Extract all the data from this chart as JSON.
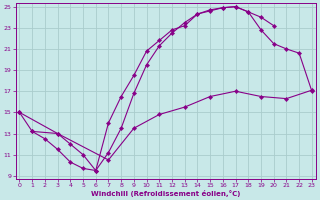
{
  "xlabel": "Windchill (Refroidissement éolien,°C)",
  "bg_color": "#c8e8e8",
  "line_color": "#880088",
  "grid_color": "#aacccc",
  "xlim": [
    0,
    23
  ],
  "ylim": [
    9,
    25
  ],
  "xticks": [
    0,
    1,
    2,
    3,
    4,
    5,
    6,
    7,
    8,
    9,
    10,
    11,
    12,
    13,
    14,
    15,
    16,
    17,
    18,
    19,
    20,
    21,
    22,
    23
  ],
  "yticks": [
    9,
    11,
    13,
    15,
    17,
    19,
    21,
    23,
    25
  ],
  "line1_x": [
    0,
    1,
    2,
    3,
    4,
    5,
    6,
    7,
    8,
    9,
    10,
    11,
    12,
    13,
    14,
    15,
    16,
    17,
    18,
    19,
    20,
    21,
    22,
    23
  ],
  "line1_y": [
    15.0,
    13.2,
    12.5,
    11.5,
    10.3,
    9.7,
    9.5,
    11.2,
    13.5,
    16.8,
    19.5,
    21.3,
    22.5,
    23.5,
    24.3,
    24.7,
    24.9,
    25.0,
    24.5,
    22.8,
    21.5,
    21.0,
    20.6,
    17.0
  ],
  "line2_x": [
    0,
    3,
    4,
    5,
    6,
    7,
    8,
    9,
    10,
    11,
    12,
    13,
    14,
    15,
    16,
    17,
    18,
    19,
    20
  ],
  "line2_y": [
    15.0,
    13.0,
    12.0,
    11.0,
    9.5,
    14.0,
    16.5,
    18.5,
    20.8,
    21.8,
    22.8,
    23.2,
    24.3,
    24.6,
    24.9,
    25.0,
    24.5,
    24.0,
    23.2
  ],
  "line3_x": [
    1,
    3,
    7,
    9,
    11,
    13,
    15,
    17,
    19,
    21,
    23
  ],
  "line3_y": [
    13.2,
    13.0,
    10.5,
    13.5,
    14.8,
    15.5,
    16.5,
    17.0,
    16.5,
    16.3,
    17.1
  ]
}
